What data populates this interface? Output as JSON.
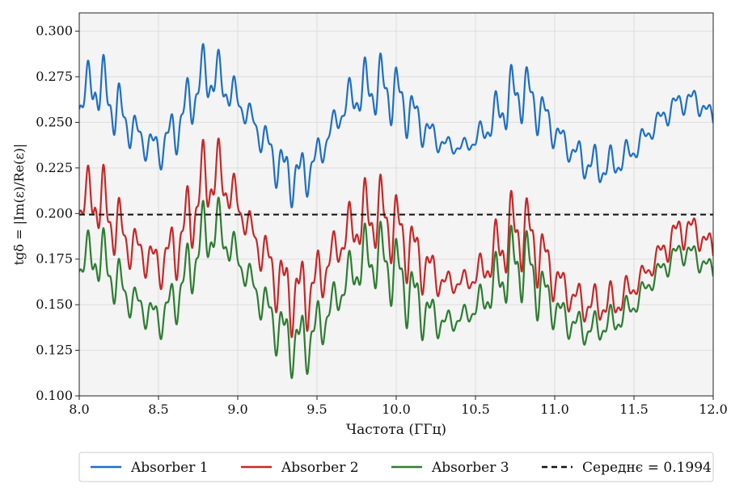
{
  "chart_data": {
    "type": "line",
    "title": "",
    "xlabel": "Частота (ГГц)",
    "ylabel": "tgδ = |Im(ε)/Re(ε)|",
    "xlim": [
      8.0,
      12.0
    ],
    "ylim": [
      0.1,
      0.31
    ],
    "xticks": [
      8.0,
      8.5,
      9.0,
      9.5,
      10.0,
      10.5,
      11.0,
      11.5,
      12.0
    ],
    "xtick_labels": [
      "8.0",
      "8.5",
      "9.0",
      "9.5",
      "10.0",
      "10.5",
      "11.0",
      "11.5",
      "12.0"
    ],
    "yticks": [
      0.1,
      0.125,
      0.15,
      0.175,
      0.2,
      0.225,
      0.25,
      0.275,
      0.3
    ],
    "ytick_labels": [
      "0.100",
      "0.125",
      "0.150",
      "0.175",
      "0.200",
      "0.225",
      "0.250",
      "0.275",
      "0.300"
    ],
    "grid": true,
    "legend_position": "bottom-center",
    "x": [
      8.0,
      8.1,
      8.2,
      8.3,
      8.4,
      8.5,
      8.6,
      8.7,
      8.8,
      8.9,
      9.0,
      9.1,
      9.2,
      9.3,
      9.4,
      9.5,
      9.6,
      9.7,
      9.8,
      9.9,
      10.0,
      10.1,
      10.2,
      10.3,
      10.4,
      10.5,
      10.6,
      10.7,
      10.8,
      10.9,
      11.0,
      11.1,
      11.2,
      11.3,
      11.4,
      11.5,
      11.6,
      11.7,
      11.8,
      11.9,
      12.0
    ],
    "series": [
      {
        "name": "Absorber 1",
        "color": "#1f6fc4",
        "style": "solid",
        "values": [
          0.262,
          0.272,
          0.262,
          0.25,
          0.24,
          0.235,
          0.245,
          0.262,
          0.277,
          0.272,
          0.262,
          0.25,
          0.235,
          0.222,
          0.22,
          0.23,
          0.248,
          0.262,
          0.268,
          0.27,
          0.265,
          0.255,
          0.245,
          0.238,
          0.236,
          0.24,
          0.25,
          0.262,
          0.268,
          0.258,
          0.245,
          0.235,
          0.228,
          0.225,
          0.228,
          0.235,
          0.245,
          0.255,
          0.262,
          0.262,
          0.252
        ],
        "amplitude": [
          0.012,
          0.02,
          0.022,
          0.014,
          0.01,
          0.012,
          0.016,
          0.018,
          0.02,
          0.016,
          0.01,
          0.008,
          0.014,
          0.018,
          0.018,
          0.012,
          0.008,
          0.012,
          0.018,
          0.02,
          0.02,
          0.016,
          0.01,
          0.006,
          0.004,
          0.006,
          0.012,
          0.02,
          0.02,
          0.016,
          0.01,
          0.008,
          0.012,
          0.012,
          0.01,
          0.008,
          0.006,
          0.008,
          0.008,
          0.008,
          0.006
        ]
      },
      {
        "name": "Absorber 2",
        "color": "#c62828",
        "style": "solid",
        "values": [
          0.205,
          0.21,
          0.198,
          0.185,
          0.178,
          0.172,
          0.18,
          0.198,
          0.22,
          0.22,
          0.205,
          0.188,
          0.172,
          0.158,
          0.155,
          0.162,
          0.178,
          0.19,
          0.198,
          0.2,
          0.192,
          0.18,
          0.17,
          0.162,
          0.162,
          0.165,
          0.175,
          0.188,
          0.192,
          0.18,
          0.165,
          0.155,
          0.15,
          0.15,
          0.152,
          0.16,
          0.17,
          0.182,
          0.192,
          0.19,
          0.18
        ],
        "amplitude": [
          0.012,
          0.024,
          0.024,
          0.016,
          0.012,
          0.014,
          0.02,
          0.024,
          0.026,
          0.02,
          0.012,
          0.01,
          0.018,
          0.024,
          0.026,
          0.02,
          0.012,
          0.016,
          0.022,
          0.024,
          0.024,
          0.022,
          0.016,
          0.008,
          0.006,
          0.008,
          0.016,
          0.026,
          0.026,
          0.022,
          0.014,
          0.01,
          0.012,
          0.012,
          0.012,
          0.008,
          0.006,
          0.01,
          0.012,
          0.01,
          0.008
        ]
      },
      {
        "name": "Absorber 3",
        "color": "#2e7d32",
        "style": "solid",
        "values": [
          0.172,
          0.178,
          0.168,
          0.155,
          0.148,
          0.142,
          0.152,
          0.17,
          0.19,
          0.19,
          0.175,
          0.16,
          0.145,
          0.132,
          0.128,
          0.136,
          0.15,
          0.165,
          0.175,
          0.176,
          0.168,
          0.155,
          0.145,
          0.14,
          0.142,
          0.148,
          0.158,
          0.17,
          0.175,
          0.16,
          0.148,
          0.14,
          0.136,
          0.138,
          0.142,
          0.15,
          0.162,
          0.172,
          0.18,
          0.176,
          0.168
        ],
        "amplitude": [
          0.01,
          0.02,
          0.02,
          0.012,
          0.01,
          0.012,
          0.016,
          0.02,
          0.022,
          0.018,
          0.01,
          0.01,
          0.016,
          0.02,
          0.022,
          0.018,
          0.012,
          0.014,
          0.02,
          0.022,
          0.024,
          0.022,
          0.016,
          0.008,
          0.006,
          0.008,
          0.016,
          0.024,
          0.026,
          0.02,
          0.012,
          0.01,
          0.01,
          0.01,
          0.01,
          0.008,
          0.006,
          0.008,
          0.008,
          0.008,
          0.006
        ]
      }
    ],
    "reference_line": {
      "name": "Середнє = 0.1994",
      "value": 0.1994,
      "color": "#111111",
      "style": "dashed"
    },
    "legend": [
      {
        "label": "Absorber 1",
        "color": "#1f6fc4",
        "style": "solid"
      },
      {
        "label": "Absorber 2",
        "color": "#c62828",
        "style": "solid"
      },
      {
        "label": "Absorber 3",
        "color": "#2e7d32",
        "style": "solid"
      },
      {
        "label": "Середнє = 0.1994",
        "color": "#111111",
        "style": "dashed"
      }
    ]
  }
}
